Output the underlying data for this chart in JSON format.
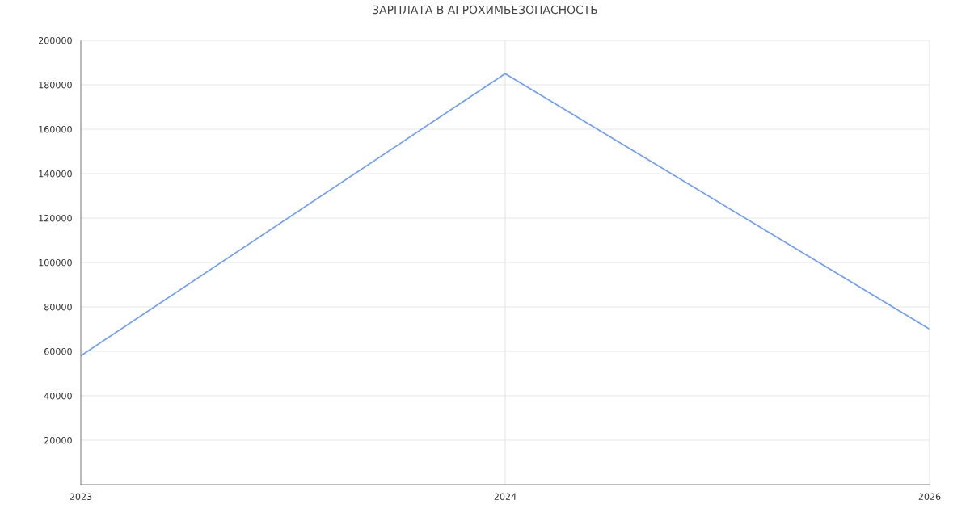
{
  "chart_data": {
    "type": "line",
    "title": "ЗАРПЛАТА В АГРОХИМБЕЗОПАСНОСТЬ",
    "categories": [
      "2023",
      "2024",
      "2026"
    ],
    "series": [
      {
        "color": "#6f9ef5",
        "values": [
          58000,
          185000,
          70000
        ]
      }
    ],
    "ylim": [
      0,
      200000
    ],
    "yticks": [
      {
        "value": 0,
        "label": null
      },
      20000,
      40000,
      60000,
      80000,
      100000,
      120000,
      140000,
      160000,
      180000,
      200000
    ],
    "grid": true,
    "marker": "none",
    "line_style": "solid"
  }
}
